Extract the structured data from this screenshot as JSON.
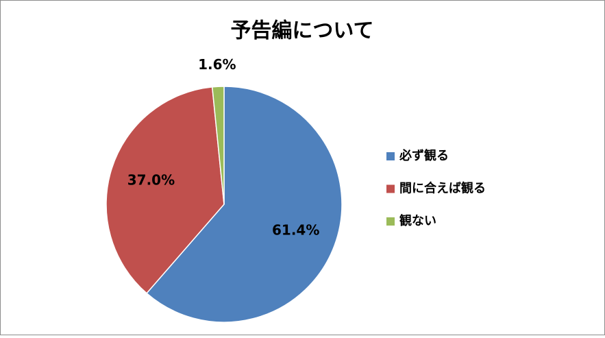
{
  "chart_data": {
    "type": "pie",
    "title": "予告編について",
    "categories": [
      "必ず観る",
      "間に合えば観る",
      "観ない"
    ],
    "values": [
      61.4,
      37.0,
      1.6
    ],
    "value_labels": [
      "61.4%",
      "37.0%",
      "1.6%"
    ],
    "colors": [
      "#4f81bd",
      "#c0504d",
      "#9bbb59"
    ],
    "legend": "right"
  }
}
